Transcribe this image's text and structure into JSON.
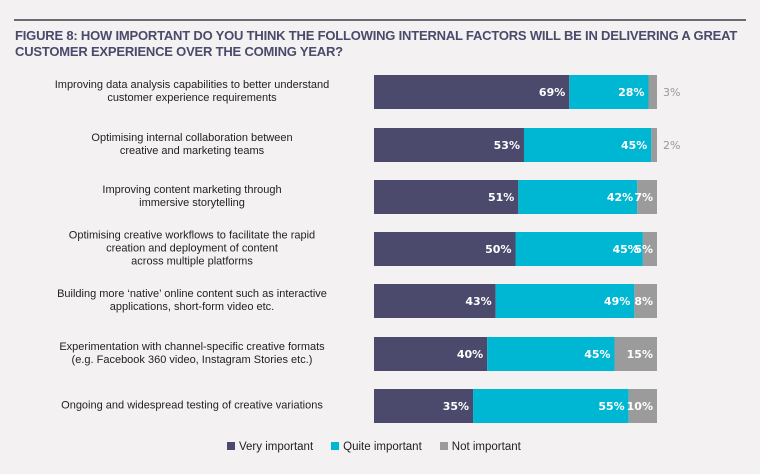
{
  "chart_data": {
    "type": "bar",
    "orientation": "horizontal",
    "stacked": true,
    "title": "FIGURE 8: HOW IMPORTANT DO YOU THINK THE FOLLOWING INTERNAL FACTORS WILL BE IN DELIVERING A GREAT CUSTOMER EXPERIENCE OVER THE COMING YEAR?",
    "categories": [
      [
        "Improving data analysis capabilities to better understand",
        "customer experience requirements"
      ],
      [
        "Optimising internal collaboration between",
        "creative and marketing teams"
      ],
      [
        "Improving content marketing through",
        "immersive storytelling"
      ],
      [
        "Optimising creative workflows to facilitate the rapid",
        "creation and deployment of content",
        "across multiple platforms"
      ],
      [
        "Building more ‘native’ online content such as interactive",
        "applications, short-form video etc."
      ],
      [
        "Experimentation with channel-specific creative formats",
        "(e.g. Facebook 360 video, Instagram Stories etc.)"
      ],
      [
        "Ongoing and widespread testing of creative variations"
      ]
    ],
    "series": [
      {
        "name": "Very important",
        "color": "#4b4a6d",
        "values": [
          69,
          53,
          51,
          50,
          43,
          40,
          35
        ]
      },
      {
        "name": "Quite important",
        "color": "#00b7d3",
        "values": [
          28,
          45,
          42,
          45,
          49,
          45,
          55
        ]
      },
      {
        "name": "Not important",
        "color": "#9b9b9b",
        "values": [
          3,
          2,
          7,
          5,
          8,
          15,
          10
        ]
      }
    ],
    "xlim": [
      0,
      100
    ],
    "legend": "bottom"
  }
}
